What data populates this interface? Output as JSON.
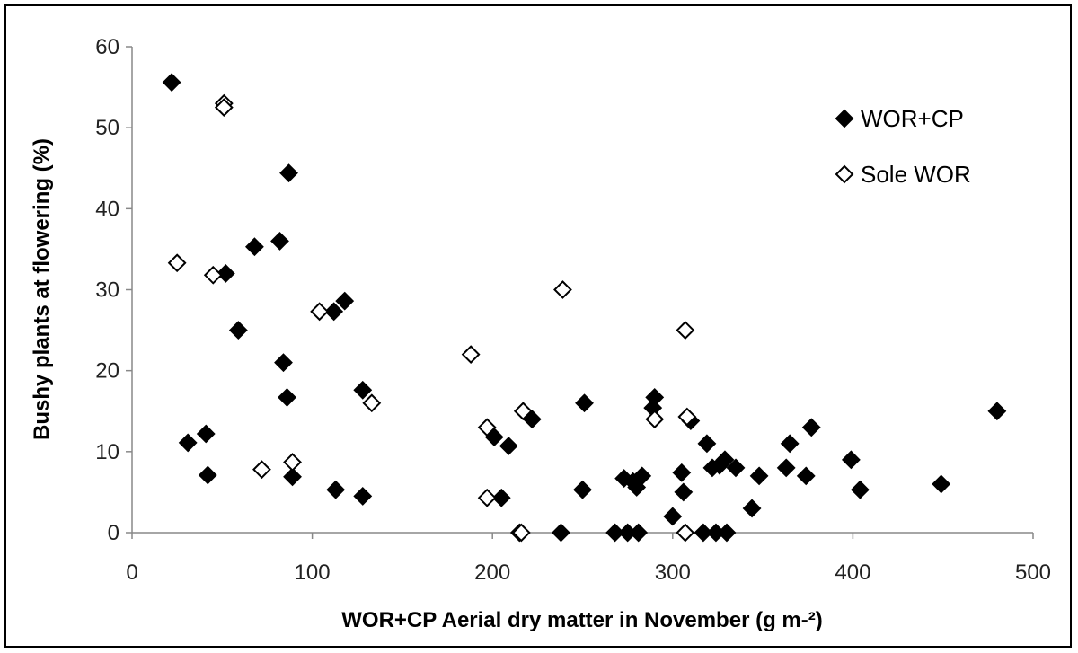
{
  "chart_data": {
    "type": "scatter",
    "xlabel": "WOR+CP Aerial dry matter in November (g m-²)",
    "ylabel": "Bushy plants at flowering (%)",
    "xlim": [
      0,
      500
    ],
    "ylim": [
      0,
      60
    ],
    "xticks": [
      "0",
      "100",
      "200",
      "300",
      "400",
      "500"
    ],
    "yticks": [
      "0",
      "10",
      "20",
      "30",
      "40",
      "50",
      "60"
    ],
    "grid": false,
    "legend_position": "top-right",
    "series": [
      {
        "name": "WOR+CP",
        "marker": "filled-diamond",
        "color": "#000000",
        "points": [
          [
            22,
            55.6
          ],
          [
            31,
            11.1
          ],
          [
            41,
            12.2
          ],
          [
            42,
            7.1
          ],
          [
            52,
            32
          ],
          [
            59,
            25
          ],
          [
            68,
            35.3
          ],
          [
            82,
            36
          ],
          [
            84,
            21
          ],
          [
            86,
            16.7
          ],
          [
            87,
            44.4
          ],
          [
            89,
            6.9
          ],
          [
            112,
            27.3
          ],
          [
            113,
            5.3
          ],
          [
            118,
            28.6
          ],
          [
            128,
            17.6
          ],
          [
            128,
            4.5
          ],
          [
            201,
            11.8
          ],
          [
            205,
            4.3
          ],
          [
            209,
            10.7
          ],
          [
            222,
            14
          ],
          [
            238,
            0
          ],
          [
            250,
            5.3
          ],
          [
            251,
            16
          ],
          [
            268,
            0
          ],
          [
            273,
            6.7
          ],
          [
            275,
            0
          ],
          [
            278,
            6.3
          ],
          [
            280,
            5.6
          ],
          [
            281,
            0
          ],
          [
            283,
            7
          ],
          [
            289,
            15.4
          ],
          [
            290,
            16.7
          ],
          [
            300,
            2
          ],
          [
            305,
            7.4
          ],
          [
            306,
            5
          ],
          [
            310,
            13.8
          ],
          [
            317,
            0
          ],
          [
            319,
            11
          ],
          [
            322,
            8
          ],
          [
            324,
            0
          ],
          [
            326,
            8.3
          ],
          [
            329,
            9
          ],
          [
            330,
            0
          ],
          [
            335,
            8
          ],
          [
            344,
            3
          ],
          [
            348,
            7
          ],
          [
            363,
            8
          ],
          [
            365,
            11
          ],
          [
            374,
            7
          ],
          [
            377,
            13
          ],
          [
            399,
            9
          ],
          [
            404,
            5.3
          ],
          [
            449,
            6
          ],
          [
            480,
            15
          ]
        ]
      },
      {
        "name": "Sole WOR",
        "marker": "open-diamond",
        "color": "#000000",
        "points": [
          [
            25,
            33.3
          ],
          [
            45,
            31.8
          ],
          [
            51,
            53
          ],
          [
            51,
            52.5
          ],
          [
            72,
            7.8
          ],
          [
            89,
            8.7
          ],
          [
            104,
            27.3
          ],
          [
            133,
            16
          ],
          [
            188,
            22
          ],
          [
            197,
            4.3
          ],
          [
            197,
            13
          ],
          [
            215,
            0
          ],
          [
            216,
            0
          ],
          [
            217,
            15
          ],
          [
            239,
            30
          ],
          [
            290,
            14
          ],
          [
            307,
            25
          ],
          [
            307,
            0
          ],
          [
            308,
            14.3
          ]
        ]
      }
    ]
  }
}
